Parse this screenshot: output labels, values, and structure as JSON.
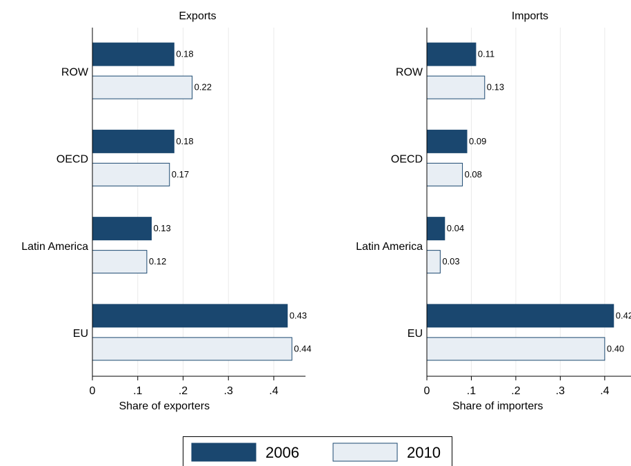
{
  "chart_data": [
    {
      "type": "bar",
      "orientation": "horizontal",
      "title": "Exports",
      "x_label": "Share of exporters",
      "categories": [
        "ROW",
        "OECD",
        "Latin America",
        "EU"
      ],
      "series": [
        {
          "name": "2006",
          "color": "#1a476f",
          "values": [
            0.18,
            0.18,
            0.13,
            0.43
          ],
          "value_labels": [
            "0.18",
            "0.18",
            "0.13",
            "0.43"
          ]
        },
        {
          "name": "2010",
          "color": "#e8eef4",
          "values": [
            0.22,
            0.17,
            0.12,
            0.44
          ],
          "value_labels": [
            "0.22",
            "0.17",
            "0.12",
            "0.44"
          ]
        }
      ],
      "xlim": [
        0,
        0.47
      ],
      "xticks": [
        0,
        {
          "value": 0.1,
          "label": ".1"
        },
        {
          "value": 0.2,
          "label": ".2"
        },
        {
          "value": 0.3,
          "label": ".3"
        },
        {
          "value": 0.4,
          "label": ".4"
        }
      ],
      "grid": true
    },
    {
      "type": "bar",
      "orientation": "horizontal",
      "title": "Imports",
      "x_label": "Share of importers",
      "categories": [
        "ROW",
        "OECD",
        "Latin America",
        "EU"
      ],
      "series": [
        {
          "name": "2006",
          "color": "#1a476f",
          "values": [
            0.11,
            0.09,
            0.04,
            0.42
          ],
          "value_labels": [
            "0.11",
            "0.09",
            "0.04",
            "0.42"
          ]
        },
        {
          "name": "2010",
          "color": "#e8eef4",
          "values": [
            0.13,
            0.08,
            0.03,
            0.4
          ],
          "value_labels": [
            "0.13",
            "0.08",
            "0.03",
            "0.40"
          ]
        }
      ],
      "xlim": [
        0,
        0.47
      ],
      "xticks": [
        0,
        {
          "value": 0.1,
          "label": ".1"
        },
        {
          "value": 0.2,
          "label": ".2"
        },
        {
          "value": 0.3,
          "label": ".3"
        },
        {
          "value": 0.4,
          "label": ".4"
        }
      ],
      "grid": true
    }
  ]
}
